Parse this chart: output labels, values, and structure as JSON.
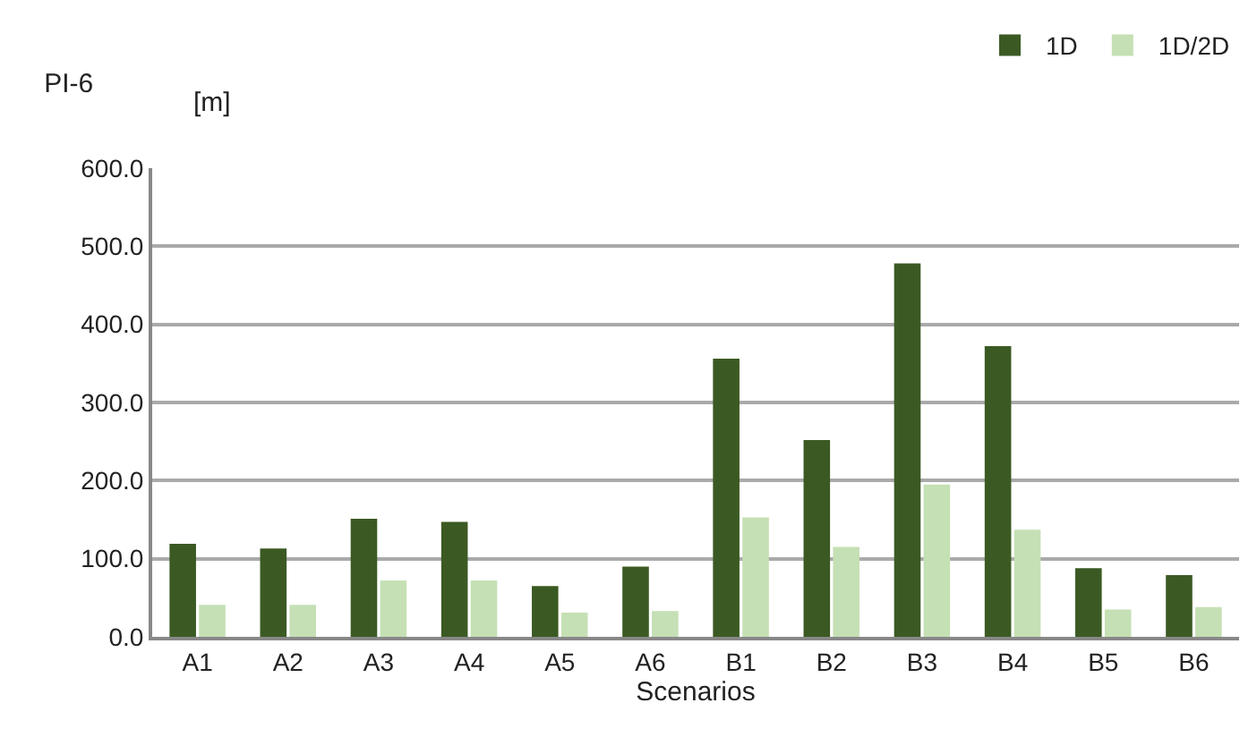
{
  "chart_data": {
    "type": "bar",
    "title": "PI-6",
    "ylabel": "[m]",
    "xlabel": "Scenarios",
    "categories": [
      "A1",
      "A2",
      "A3",
      "A4",
      "A5",
      "A6",
      "B1",
      "B2",
      "B3",
      "B4",
      "B5",
      "B6"
    ],
    "series": [
      {
        "name": "1D",
        "color": "#3b5a23",
        "values": [
          119,
          113,
          151,
          147,
          65,
          90,
          356,
          252,
          478,
          372,
          88,
          79
        ]
      },
      {
        "name": "1D/2D",
        "color": "#c5e0b4",
        "values": [
          41,
          41,
          72,
          72,
          31,
          33,
          153,
          115,
          195,
          137,
          35,
          38
        ]
      }
    ],
    "ylim": [
      0,
      600
    ],
    "yticks": [
      {
        "value": 0,
        "label": "0.0"
      },
      {
        "value": 100,
        "label": "100.0"
      },
      {
        "value": 200,
        "label": "200.0"
      },
      {
        "value": 300,
        "label": "300.0"
      },
      {
        "value": 400,
        "label": "400.0"
      },
      {
        "value": 500,
        "label": "500.0"
      },
      {
        "value": 600,
        "label": "600.0"
      }
    ],
    "grid": "y",
    "legend": "top right"
  }
}
